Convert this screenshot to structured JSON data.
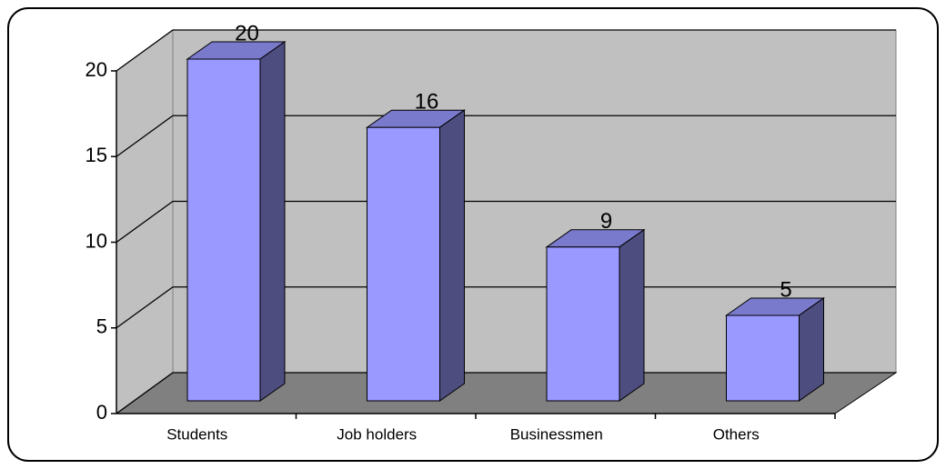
{
  "chart_data": {
    "type": "bar",
    "categories": [
      "Students",
      "Job holders",
      "Businessmen",
      "Others"
    ],
    "values": [
      20,
      16,
      9,
      5
    ],
    "color": "#9999ff",
    "ylim": [
      0,
      20
    ],
    "yticks": [
      0,
      5,
      10,
      15,
      20
    ],
    "grid": true
  }
}
